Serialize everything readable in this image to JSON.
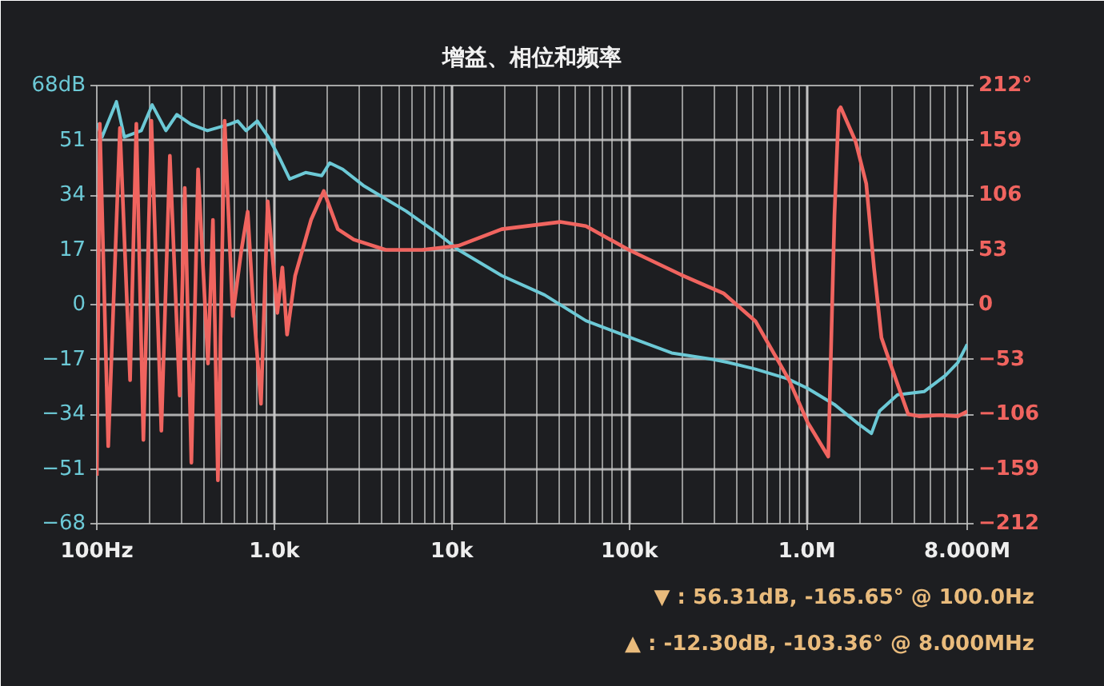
{
  "chart_data": {
    "type": "line",
    "title": "增益、相位和频率",
    "series": [
      {
        "color": "#6cc9d6",
        "x": [
          100,
          107,
          129,
          143,
          178,
          205,
          245,
          282,
          339,
          420,
          560,
          622,
          693,
          802,
          925,
          1060,
          1220,
          1500,
          1850,
          2050,
          2430,
          3170,
          5530,
          8360,
          10900,
          19100,
          33300,
          56900,
          99100,
          173000,
          296000,
          363000,
          513000,
          776000,
          1010000,
          1430000,
          1950000,
          2310000,
          2570000,
          3240000,
          4570000,
          6030000,
          7080000,
          8000000
        ],
        "values": [
          56.31,
          52,
          63,
          52,
          54,
          62,
          54,
          59,
          56,
          54,
          56,
          57,
          54,
          57,
          52,
          46,
          39,
          41,
          40,
          44,
          42,
          37,
          29,
          22,
          17,
          9,
          3,
          -5,
          -10,
          -15,
          -17,
          -18,
          -20,
          -23,
          -26,
          -31,
          -37,
          -40,
          -33,
          -28,
          -27,
          -22,
          -18,
          -12.3
        ]
      },
      {
        "color": "#f0645f",
        "axis": "y2",
        "x": [
          100,
          104,
          116,
          135,
          154,
          167,
          183,
          203,
          231,
          258,
          293,
          313,
          341,
          372,
          423,
          451,
          481,
          525,
          583,
          650,
          708,
          757,
          841,
          918,
          1040,
          1110,
          1180,
          1310,
          1610,
          1900,
          2280,
          2800,
          4240,
          6810,
          10900,
          19100,
          40700,
          56900,
          99300,
          195000,
          339000,
          513000,
          676000,
          794000,
          1010000,
          1320000,
          1360000,
          1430000,
          1510000,
          1550000,
          1880000,
          2160000,
          2390000,
          2630000,
          3020000,
          3720000,
          4270000,
          5620000,
          7080000,
          8000000
        ],
        "values": [
          -165.65,
          175,
          -137,
          171,
          -73,
          175,
          -131,
          178,
          -122,
          144,
          -88,
          113,
          -153,
          131,
          -57,
          82,
          -170,
          178,
          -11,
          51,
          90,
          5,
          -96,
          100,
          -8,
          36,
          -29,
          28,
          82,
          110,
          73,
          63,
          53,
          53,
          57,
          73,
          80,
          76,
          53,
          29,
          11,
          -16,
          -52,
          -73,
          -114,
          -147,
          -60,
          86,
          188,
          191,
          158,
          117,
          35,
          -32,
          -62,
          -106,
          -108,
          -107,
          -108,
          -103.36
        ]
      }
    ],
    "xlim": [
      100,
      8000000
    ],
    "xticks": [
      {
        "value": 100,
        "label": "100Hz"
      },
      {
        "value": 1000,
        "label": "1.0k"
      },
      {
        "value": 10000,
        "label": "10k"
      },
      {
        "value": 100000,
        "label": "100k"
      },
      {
        "value": 1000000,
        "label": "1.0M"
      },
      {
        "value": 8000000,
        "label": "8.000M"
      }
    ],
    "ylim": [
      -68,
      68
    ],
    "yticks": [
      {
        "value": 68,
        "label": "68dB"
      },
      51,
      34,
      17,
      0,
      -17,
      -34,
      -51,
      -68
    ],
    "y2lim": [
      -212,
      212
    ],
    "y2ticks": [
      {
        "value": 212,
        "label": "212°"
      },
      159,
      106,
      53,
      0,
      -53,
      -106,
      -159,
      -212
    ],
    "log": "x",
    "grid": true,
    "line_style": "solid",
    "annotations": [
      "▼ : 56.31dB, -165.65° @ 100.0Hz",
      "▲ : -12.30dB, -103.36° @ 8.000MHz"
    ]
  }
}
